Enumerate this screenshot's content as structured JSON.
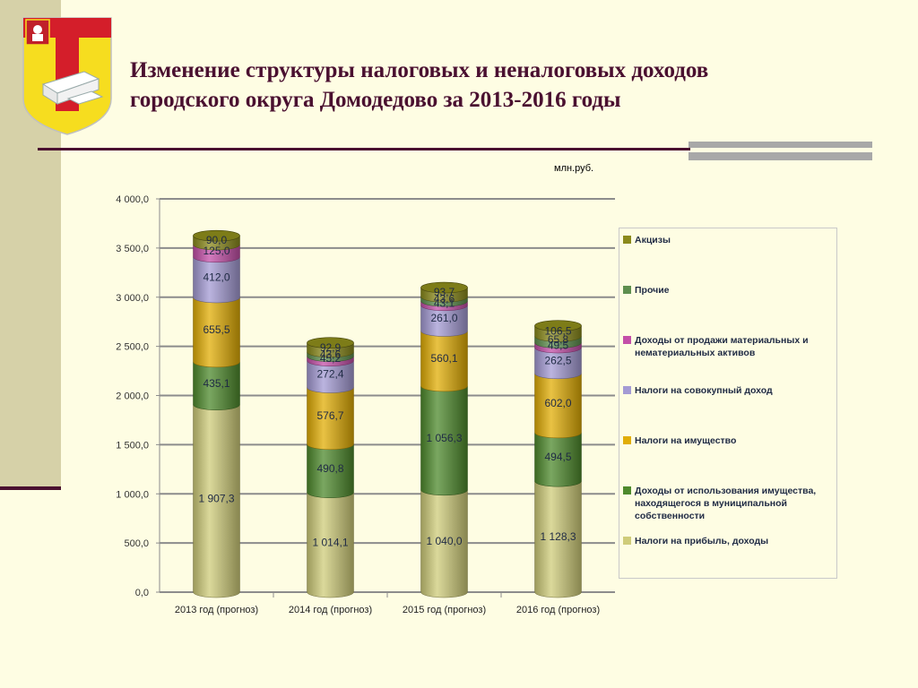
{
  "title": {
    "line1": "Изменение структуры налоговых и неналоговых доходов",
    "line2": "городского округа Домодедово за 2013-2016 годы"
  },
  "unit_label": "млн.руб.",
  "crest": {
    "icon": "domodedovo-coat-of-arms-icon"
  },
  "chart_data": {
    "type": "bar",
    "stacked": true,
    "categories": [
      "2013 год (прогноз)",
      "2014 год (прогноз)",
      "2015 год (прогноз)",
      "2016 год (прогноз)"
    ],
    "ylim": [
      0,
      4000
    ],
    "yticks": [
      0,
      500,
      1000,
      1500,
      2000,
      2500,
      3000,
      3500,
      4000
    ],
    "ytick_labels": [
      "0,0",
      "500,0",
      "1 000,0",
      "1 500,0",
      "2 000,0",
      "2 500,0",
      "3 000,0",
      "3 500,0",
      "4 000,0"
    ],
    "grid": true,
    "legend_position": "right",
    "series": [
      {
        "name": "Налоги на прибыль, доходы",
        "color": "#CFCC79",
        "values": [
          1907.3,
          1014.1,
          1040.0,
          1128.3
        ],
        "labels": [
          "1 907,3",
          "1 014,1",
          "1 040,0",
          "1 128,3"
        ]
      },
      {
        "name": "Доходы от использования имущества, находящегося в муниципальной собственности",
        "color": "#4E8A2C",
        "values": [
          435.1,
          490.8,
          1056.3,
          494.5
        ],
        "labels": [
          "435,1",
          "490,8",
          "1 056,3",
          "494,5"
        ]
      },
      {
        "name": "Налоги на имущество",
        "color": "#E1AD05",
        "values": [
          655.5,
          576.7,
          560.1,
          602.0
        ],
        "labels": [
          "655,5",
          "576,7",
          "560,1",
          "602,0"
        ]
      },
      {
        "name": "Налоги на совокупный доход",
        "color": "#A49BD4",
        "values": [
          412.0,
          272.4,
          261.0,
          262.5
        ],
        "labels": [
          "412,0",
          "272,4",
          "261,0",
          "262,5"
        ]
      },
      {
        "name": "Доходы от продажи материальных и нематериальных активов",
        "color": "#C44FA8",
        "values": [
          125.0,
          45.2,
          43.1,
          49.5
        ],
        "labels": [
          "125,0",
          "45,2",
          "43,1",
          "49,5"
        ]
      },
      {
        "name": "Прочие",
        "color": "#5E8F4E",
        "values": [
          0,
          43.6,
          43.6,
          65.8
        ],
        "labels": [
          "",
          "43,6",
          "43,6",
          "65,8"
        ]
      },
      {
        "name": "Акцизы",
        "color": "#8B8A1B",
        "values": [
          90.0,
          92.9,
          93.7,
          106.5
        ],
        "labels": [
          "90,0",
          "92,9",
          "93,7",
          "106,5"
        ]
      }
    ]
  },
  "legend": [
    {
      "label": "Акцизы",
      "color": "#8B8A1B"
    },
    {
      "label": "Прочие",
      "color": "#5E8F4E"
    },
    {
      "label": "Доходы от продажи материальных и нематериальных активов",
      "color": "#C44FA8"
    },
    {
      "label": "Налоги на совокупный доход",
      "color": "#A49BD4"
    },
    {
      "label": "Налоги на имущество",
      "color": "#E1AD05"
    },
    {
      "label": "Доходы от использования имущества, находящегося в муниципальной собственности",
      "color": "#4E8A2C"
    },
    {
      "label": "Налоги на прибыль, доходы",
      "color": "#CFCC79"
    }
  ]
}
